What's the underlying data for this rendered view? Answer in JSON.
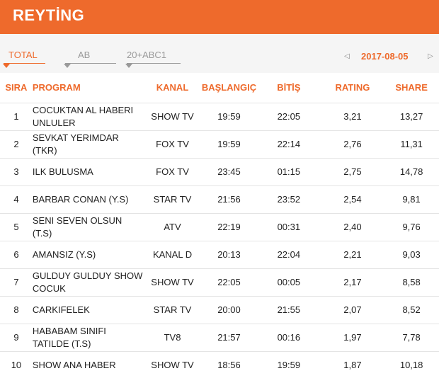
{
  "header": {
    "title": "REYTİNG"
  },
  "tabs": [
    {
      "label": "TOTAL",
      "active": true
    },
    {
      "label": "AB",
      "active": false
    },
    {
      "label": "20+ABC1",
      "active": false
    }
  ],
  "date_nav": {
    "prev_icon": "chevron-left-icon",
    "date": "2017-08-05",
    "next_icon": "chevron-right-icon"
  },
  "colors": {
    "accent": "#ee6a2c",
    "muted": "#9a9a9a",
    "tabbar_bg": "#f5f5f5"
  },
  "table": {
    "headers": {
      "sira": "SIRA",
      "program": "PROGRAM",
      "kanal": "KANAL",
      "baslangic": "BAŞLANGIÇ",
      "bitis": "BİTİŞ",
      "rating": "RATING",
      "share": "SHARE"
    },
    "rows": [
      {
        "sira": "1",
        "program": "COCUKTAN AL HABERI UNLULER",
        "kanal": "SHOW TV",
        "baslangic": "19:59",
        "bitis": "22:05",
        "rating": "3,21",
        "share": "13,27"
      },
      {
        "sira": "2",
        "program": "SEVKAT YERIMDAR (TKR)",
        "kanal": "FOX TV",
        "baslangic": "19:59",
        "bitis": "22:14",
        "rating": "2,76",
        "share": "11,31"
      },
      {
        "sira": "3",
        "program": "ILK BULUSMA",
        "kanal": "FOX TV",
        "baslangic": "23:45",
        "bitis": "01:15",
        "rating": "2,75",
        "share": "14,78"
      },
      {
        "sira": "4",
        "program": "BARBAR CONAN (Y.S)",
        "kanal": "STAR TV",
        "baslangic": "21:56",
        "bitis": "23:52",
        "rating": "2,54",
        "share": "9,81"
      },
      {
        "sira": "5",
        "program": "SENI SEVEN OLSUN (T.S)",
        "kanal": "ATV",
        "baslangic": "22:19",
        "bitis": "00:31",
        "rating": "2,40",
        "share": "9,76"
      },
      {
        "sira": "6",
        "program": "AMANSIZ (Y.S)",
        "kanal": "KANAL D",
        "baslangic": "20:13",
        "bitis": "22:04",
        "rating": "2,21",
        "share": "9,03"
      },
      {
        "sira": "7",
        "program": "GULDUY GULDUY SHOW COCUK",
        "kanal": "SHOW TV",
        "baslangic": "22:05",
        "bitis": "00:05",
        "rating": "2,17",
        "share": "8,58"
      },
      {
        "sira": "8",
        "program": "CARKIFELEK",
        "kanal": "STAR TV",
        "baslangic": "20:00",
        "bitis": "21:55",
        "rating": "2,07",
        "share": "8,52"
      },
      {
        "sira": "9",
        "program": "HABABAM SINIFI TATILDE (T.S)",
        "kanal": "TV8",
        "baslangic": "21:57",
        "bitis": "00:16",
        "rating": "1,97",
        "share": "7,78"
      },
      {
        "sira": "10",
        "program": "SHOW ANA HABER",
        "kanal": "SHOW TV",
        "baslangic": "18:56",
        "bitis": "19:59",
        "rating": "1,87",
        "share": "10,18"
      }
    ]
  }
}
